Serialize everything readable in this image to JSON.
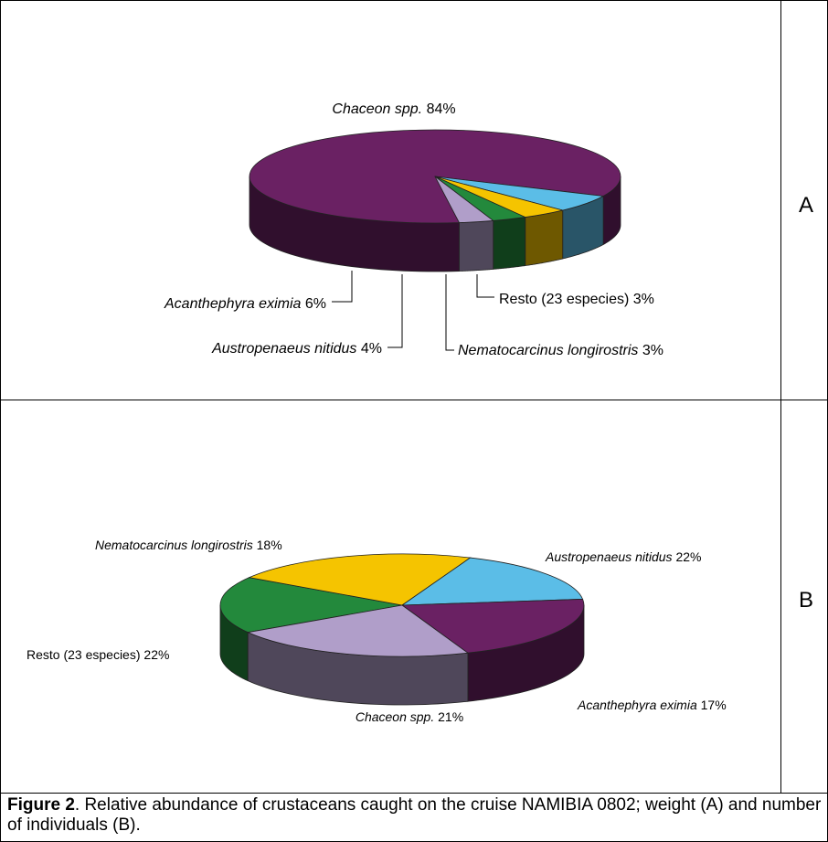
{
  "panel_labels": [
    "A",
    "B"
  ],
  "caption": {
    "label": "Figure 2",
    "text": ". Relative abundance of crustaceans caught on the cruise NAMIBIA 0802; weight (A) and number of individuals (B)."
  },
  "colors": {
    "chaceon": "#6a2163",
    "acanthephyra": "#5bbde7",
    "austropenaeus": "#f5c400",
    "nematocarcinus": "#23893c",
    "resto": "#b09ec9"
  },
  "chart_data": [
    {
      "type": "pie",
      "panel": "A",
      "slices": [
        {
          "species": "Chaceon spp.",
          "value": 84,
          "text": "84%",
          "color": "#6a2163"
        },
        {
          "species": "Acanthephyra eximia",
          "value": 6,
          "text": "6%",
          "color": "#5bbde7"
        },
        {
          "species": "Austropenaeus nitidus",
          "value": 4,
          "text": "4%",
          "color": "#f5c400"
        },
        {
          "species": "Nematocarcinus longirostris",
          "value": 3,
          "text": "3%",
          "color": "#23893c"
        },
        {
          "species": "Resto (23 especies)",
          "value": 3,
          "text": "3%",
          "color": "#b09ec9"
        }
      ]
    },
    {
      "type": "pie",
      "panel": "B",
      "slices": [
        {
          "species": "Nematocarcinus longirostris",
          "value": 18,
          "text": "18%",
          "color": "#23893c"
        },
        {
          "species": "Austropenaeus nitidus",
          "value": 22,
          "text": "22%",
          "color": "#f5c400"
        },
        {
          "species": "Acanthephyra eximia",
          "value": 17,
          "text": "17%",
          "color": "#5bbde7"
        },
        {
          "species": "Chaceon spp.",
          "value": 21,
          "text": "21%",
          "color": "#6a2163"
        },
        {
          "species": "Resto (23 especies)",
          "value": 22,
          "text": "22%",
          "color": "#b09ec9"
        }
      ]
    }
  ]
}
